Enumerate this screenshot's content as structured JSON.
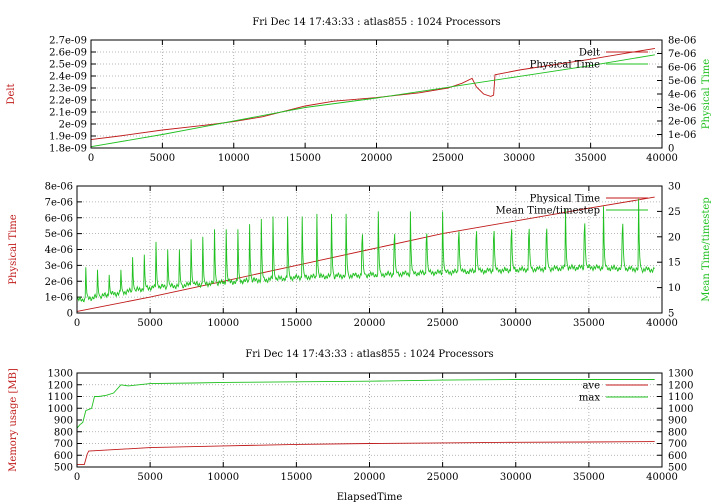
{
  "chart_data": [
    {
      "type": "line",
      "title": "Fri Dec 14 17:43:33 : atlas855 : 1024 Processors",
      "ylabel": "Delt",
      "y2label": "Physical Time",
      "xlim": [
        0,
        40000
      ],
      "ylim": [
        1.8e-09,
        2.7e-09
      ],
      "y2lim": [
        0,
        8e-06
      ],
      "x_ticks": [
        "0",
        "5000",
        "10000",
        "15000",
        "20000",
        "25000",
        "30000",
        "35000",
        "40000"
      ],
      "y_ticks": [
        "1.8e-09",
        "1.9e-09",
        "2e-09",
        "2.1e-09",
        "2.2e-09",
        "2.3e-09",
        "2.4e-09",
        "2.5e-09",
        "2.6e-09",
        "2.7e-09"
      ],
      "y2_ticks": [
        "0",
        "1e-06",
        "2e-06",
        "3e-06",
        "4e-06",
        "5e-06",
        "6e-06",
        "7e-06",
        "8e-06"
      ],
      "grid": true,
      "legend_position": "top-right",
      "series": [
        {
          "name": "Delt",
          "axis": "y",
          "color": "#c01a1a",
          "x": [
            0,
            2000,
            5000,
            8000,
            10000,
            12000,
            14000,
            15000,
            17000,
            20000,
            23000,
            25000,
            26000,
            26700,
            27000,
            27500,
            28000,
            28200,
            28300,
            30000,
            35000,
            39500
          ],
          "y": [
            1.87e-09,
            1.9e-09,
            1.95e-09,
            1.99e-09,
            2.02e-09,
            2.06e-09,
            2.12e-09,
            2.15e-09,
            2.19e-09,
            2.22e-09,
            2.26e-09,
            2.3e-09,
            2.34e-09,
            2.38e-09,
            2.31e-09,
            2.25e-09,
            2.23e-09,
            2.24e-09,
            2.41e-09,
            2.45e-09,
            2.54e-09,
            2.63e-09
          ]
        },
        {
          "name": "Physical Time",
          "axis": "y2",
          "color": "#1fc01f",
          "x": [
            0,
            5000,
            10000,
            15000,
            20000,
            25000,
            30000,
            35000,
            39500
          ],
          "y": [
            1e-07,
            1e-06,
            2e-06,
            3e-06,
            3.7e-06,
            4.5e-06,
            5.3e-06,
            6.1e-06,
            6.9e-06
          ]
        }
      ]
    },
    {
      "type": "line",
      "title": "",
      "ylabel": "Physical Time",
      "y2label": "Mean Time/timestep",
      "xlim": [
        0,
        40000
      ],
      "ylim": [
        0,
        8e-06
      ],
      "y2lim": [
        5,
        30
      ],
      "x_ticks": [
        "0",
        "5000",
        "10000",
        "15000",
        "20000",
        "25000",
        "30000",
        "35000",
        "40000"
      ],
      "y_ticks": [
        "0",
        "1e-06",
        "2e-06",
        "3e-06",
        "4e-06",
        "5e-06",
        "6e-06",
        "7e-06",
        "8e-06"
      ],
      "y2_ticks": [
        "5",
        "10",
        "15",
        "20",
        "25",
        "30"
      ],
      "grid": true,
      "legend_position": "top-right",
      "series": [
        {
          "name": "Physical Time",
          "axis": "y",
          "color": "#c01a1a",
          "x": [
            0,
            5000,
            10000,
            15000,
            20000,
            25000,
            30000,
            35000,
            39500
          ],
          "y": [
            1e-07,
            1e-06,
            2e-06,
            3e-06,
            4e-06,
            5e-06,
            5.8e-06,
            6.6e-06,
            7.3e-06
          ]
        },
        {
          "name": "Mean Time/timestep",
          "axis": "y2",
          "color": "#1fc01f",
          "baseline_x": [
            0,
            5000,
            10000,
            15000,
            20000,
            25000,
            30000,
            35000,
            39500
          ],
          "baseline_y": [
            7.5,
            10,
            11,
            12,
            12.5,
            13,
            13.5,
            14,
            13.5
          ],
          "peak_x": [
            600,
            1400,
            2200,
            3000,
            3800,
            4600,
            5400,
            6200,
            7000,
            7800,
            8600,
            9400,
            10200,
            11000,
            11800,
            12600,
            13400,
            14400,
            15400,
            16400,
            17400,
            18400,
            19500,
            20600,
            21700,
            22800,
            23900,
            25000,
            26100,
            27300,
            28500,
            29700,
            30900,
            32100,
            33400,
            34700,
            36000,
            37300,
            38400
          ],
          "peak_y": [
            14,
            13.5,
            12.5,
            13.5,
            16,
            16.5,
            19,
            17.5,
            17.5,
            19.5,
            20,
            21.5,
            21.5,
            21.5,
            22.5,
            23.5,
            24,
            24,
            24,
            24.5,
            24.5,
            24.5,
            25,
            25,
            25,
            25,
            25,
            25,
            25.5,
            25.5,
            25.5,
            26,
            26,
            26,
            25.5,
            27.5,
            26,
            27.5,
            27.5
          ]
        }
      ]
    },
    {
      "type": "line",
      "title": "Fri Dec 14 17:43:33 : atlas855 : 1024 Processors",
      "xlabel": "ElapsedTime",
      "ylabel": "Memory usage [MB]",
      "xlim": [
        0,
        40000
      ],
      "ylim": [
        500,
        1300
      ],
      "y2lim": [
        500,
        1300
      ],
      "x_ticks": [
        "0",
        "5000",
        "10000",
        "15000",
        "20000",
        "25000",
        "30000",
        "35000",
        "40000"
      ],
      "y_ticks": [
        "500",
        "600",
        "700",
        "800",
        "900",
        "1000",
        "1100",
        "1200",
        "1300"
      ],
      "y2_ticks": [
        "500",
        "600",
        "700",
        "800",
        "900",
        "1000",
        "1100",
        "1200",
        "1300"
      ],
      "grid": true,
      "legend_position": "top-right",
      "series": [
        {
          "name": "ave",
          "axis": "y",
          "color": "#c01a1a",
          "x": [
            0,
            500,
            700,
            800,
            5000,
            10000,
            15000,
            20000,
            25000,
            30000,
            35000,
            39500
          ],
          "y": [
            520,
            520,
            610,
            635,
            665,
            680,
            692,
            700,
            705,
            710,
            713,
            716
          ]
        },
        {
          "name": "max",
          "axis": "y",
          "color": "#1fc01f",
          "x": [
            0,
            200,
            400,
            600,
            800,
            1000,
            1200,
            1500,
            2000,
            2500,
            3000,
            3500,
            5000,
            8000,
            10000,
            15000,
            20000,
            25000,
            30000,
            39500
          ],
          "y": [
            830,
            860,
            880,
            980,
            990,
            1000,
            1100,
            1100,
            1110,
            1130,
            1200,
            1190,
            1210,
            1215,
            1220,
            1225,
            1230,
            1240,
            1245,
            1245
          ]
        }
      ]
    }
  ]
}
